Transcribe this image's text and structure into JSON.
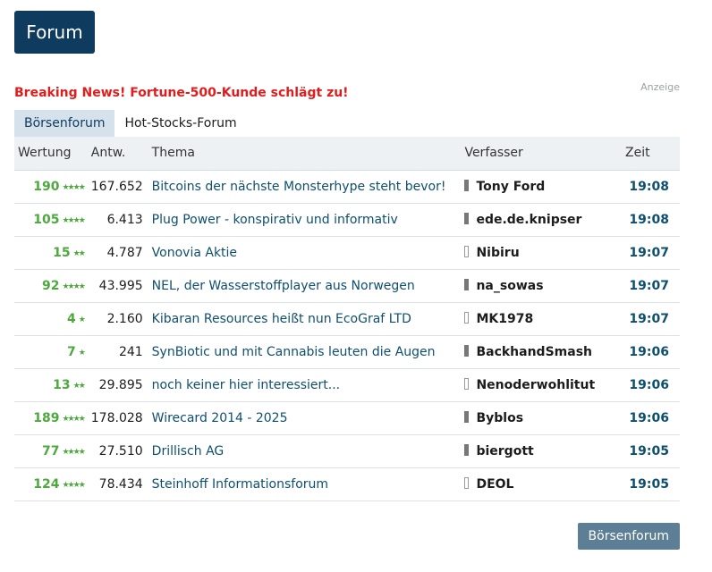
{
  "header": {
    "title": "Forum"
  },
  "ad": {
    "label": "Anzeige"
  },
  "breaking_news": "Breaking News! Fortune-500-Kunde schlägt zu!",
  "tabs": [
    {
      "label": "Börsenforum",
      "active": true
    },
    {
      "label": "Hot-Stocks-Forum",
      "active": false
    }
  ],
  "columns": {
    "rating": "Wertung",
    "answers": "Antw.",
    "topic": "Thema",
    "author": "Verfasser",
    "time": "Zeit"
  },
  "rows": [
    {
      "rating": "190",
      "stars": 4,
      "answers": "167.652",
      "topic": "Bitcoins der nächste Monsterhype steht bevor!",
      "author": "Tony Ford",
      "time": "19:08",
      "author_icon": "dark"
    },
    {
      "rating": "105",
      "stars": 4,
      "answers": "6.413",
      "topic": "Plug Power - konspirativ und informativ",
      "author": "ede.de.knipser",
      "time": "19:08",
      "author_icon": "dark"
    },
    {
      "rating": "15",
      "stars": 2,
      "answers": "4.787",
      "topic": "Vonovia Aktie",
      "author": "Nibiru",
      "time": "19:07",
      "author_icon": "light"
    },
    {
      "rating": "92",
      "stars": 4,
      "answers": "43.995",
      "topic": "NEL, der Wasserstoffplayer aus Norwegen",
      "author": "na_sowas",
      "time": "19:07",
      "author_icon": "dark"
    },
    {
      "rating": "4",
      "stars": 1,
      "answers": "2.160",
      "topic": "Kibaran Resources heißt nun EcoGraf LTD",
      "author": "MK1978",
      "time": "19:07",
      "author_icon": "light"
    },
    {
      "rating": "7",
      "stars": 1,
      "answers": "241",
      "topic": "SynBiotic und mit Cannabis leuten die Augen",
      "author": "BackhandSmash",
      "time": "19:06",
      "author_icon": "dark"
    },
    {
      "rating": "13",
      "stars": 2,
      "answers": "29.895",
      "topic": "noch keiner hier interessiert...",
      "author": "Nenoderwohlitut",
      "time": "19:06",
      "author_icon": "light"
    },
    {
      "rating": "189",
      "stars": 4,
      "answers": "178.028",
      "topic": "Wirecard 2014 - 2025",
      "author": "Byblos",
      "time": "19:06",
      "author_icon": "dark"
    },
    {
      "rating": "77",
      "stars": 4,
      "answers": "27.510",
      "topic": "Drillisch AG",
      "author": "biergott",
      "time": "19:05",
      "author_icon": "dark"
    },
    {
      "rating": "124",
      "stars": 4,
      "answers": "78.434",
      "topic": "Steinhoff Informationsforum",
      "author": "DEOL",
      "time": "19:05",
      "author_icon": "light"
    }
  ],
  "footer": {
    "button_label": "Börsenforum"
  },
  "colors": {
    "brand": "#0e3b5e",
    "breaking": "#e11c1c",
    "rating": "#4caa3c",
    "link": "#0e4f6e",
    "button": "#5d7f96"
  },
  "icons": {
    "rating": "star-icon",
    "author": "user-status-icon"
  }
}
